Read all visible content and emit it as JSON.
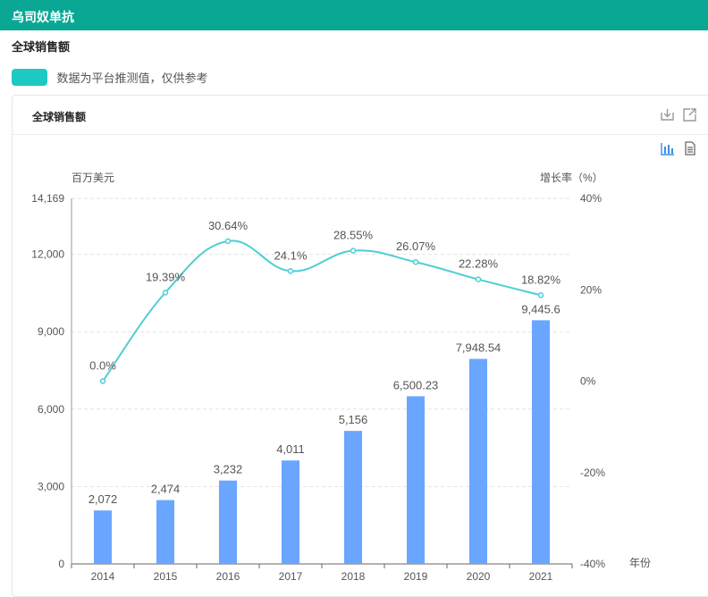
{
  "header": {
    "title": "乌司奴单抗"
  },
  "section": {
    "title": "全球销售额"
  },
  "notice": {
    "text": "数据为平台推测值，仅供参考"
  },
  "card": {
    "title": "全球销售额",
    "icons": {
      "download": "download-icon",
      "share": "external-link-icon",
      "bar_view": "bar-chart-icon",
      "table_view": "document-icon"
    }
  },
  "chart_data": {
    "type": "bar",
    "categories": [
      "2014",
      "2015",
      "2016",
      "2017",
      "2018",
      "2019",
      "2020",
      "2021"
    ],
    "ylabel_left": "百万美元",
    "ylabel_right": "增长率（%）",
    "xlabel": "年份",
    "ylim_left": [
      0,
      14169
    ],
    "yticks_left": [
      "0",
      "3,000",
      "6,000",
      "9,000",
      "12,000",
      "14,169"
    ],
    "ylim_right": [
      -40,
      40
    ],
    "yticks_right": [
      "-40%",
      "-20%",
      "0%",
      "20%",
      "40%"
    ],
    "grid": true,
    "colors": {
      "bar": "#6aa6ff",
      "line": "#50cdd6"
    },
    "series": [
      {
        "type": "bar",
        "values": [
          2072,
          2474,
          3232,
          4011,
          5156,
          6500.23,
          7948.54,
          9445.6
        ],
        "labels": [
          "2,072",
          "2,474",
          "3,232",
          "4,011",
          "5,156",
          "6,500.23",
          "7,948.54",
          "9,445.6"
        ]
      },
      {
        "type": "line",
        "values": [
          0.0,
          19.39,
          30.64,
          24.1,
          28.55,
          26.07,
          22.28,
          18.82
        ],
        "labels": [
          "0.0%",
          "19.39%",
          "30.64%",
          "24.1%",
          "28.55%",
          "26.07%",
          "22.28%",
          "18.82%"
        ]
      }
    ]
  }
}
